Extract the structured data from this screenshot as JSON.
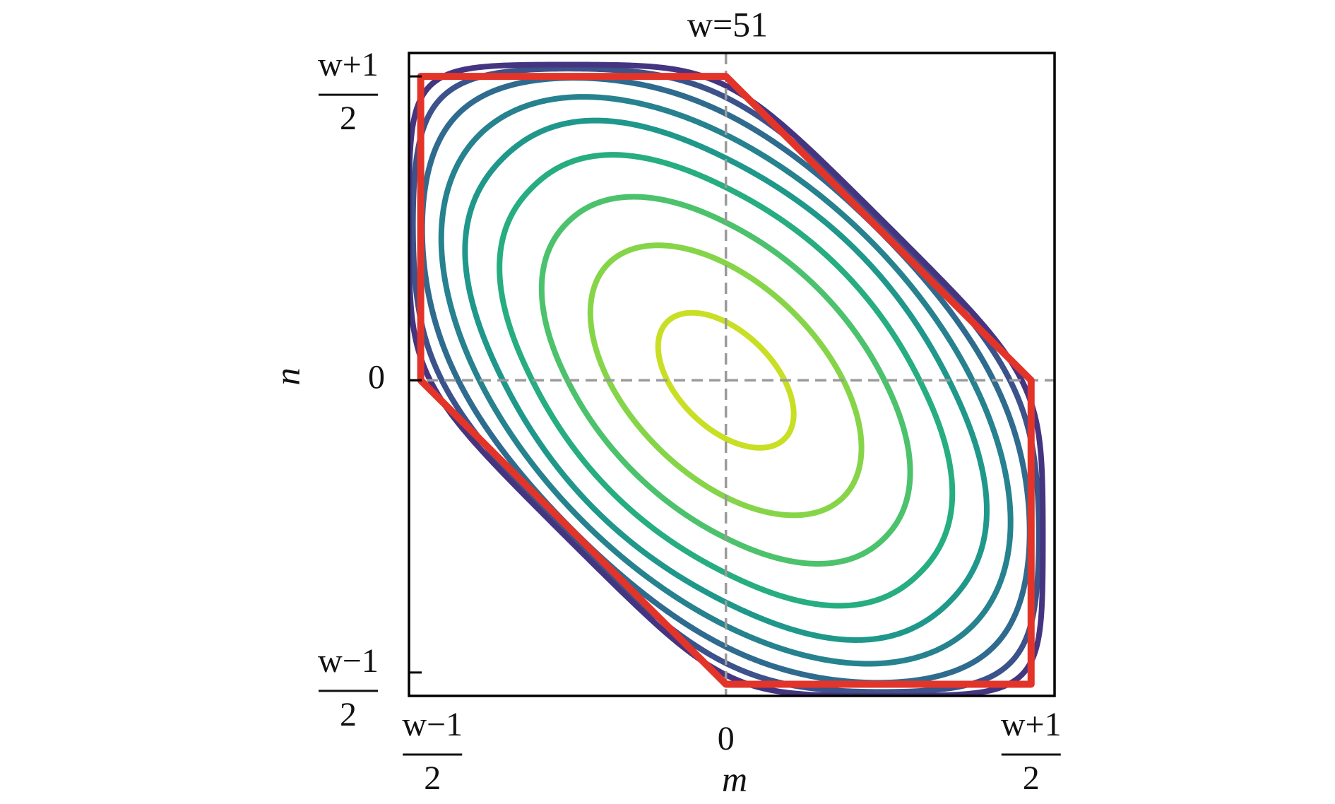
{
  "chart_data": {
    "type": "contour",
    "title": "w=51",
    "x_label": "m",
    "y_label": "n",
    "xlim": [
      -27,
      28
    ],
    "ylim": [
      -27,
      28
    ],
    "xticks": [
      {
        "value": -25,
        "label": {
          "numerator": "w−1",
          "denominator": "2"
        }
      },
      0,
      {
        "value": 26,
        "label": {
          "numerator": "w+1",
          "denominator": "2"
        }
      }
    ],
    "yticks": [
      {
        "value": -25,
        "label": {
          "numerator": "w−1",
          "denominator": "2"
        }
      },
      0,
      {
        "value": 26,
        "label": {
          "numerator": "w+1",
          "denominator": "2"
        }
      }
    ],
    "reference_lines": [
      {
        "axis": "x",
        "value": 0
      },
      {
        "axis": "y",
        "value": 0
      }
    ],
    "reference_color": "#9a9a9a",
    "boundary": {
      "color": "#e3342a",
      "x": [
        -26,
        0,
        26,
        26,
        0,
        -26
      ],
      "y": [
        26,
        26,
        0,
        -26,
        -26,
        0
      ]
    },
    "contours": [
      {
        "level": 5,
        "exponent": 2,
        "color": "#c8df24"
      },
      {
        "level": 10,
        "exponent": 2,
        "color": "#86d549"
      },
      {
        "level": 13.5,
        "exponent": 2.2,
        "color": "#4cc26c"
      },
      {
        "level": 16.5,
        "exponent": 2.5,
        "color": "#26ad81"
      },
      {
        "level": 19,
        "exponent": 3,
        "color": "#1f988b"
      },
      {
        "level": 21,
        "exponent": 4,
        "color": "#26828e"
      },
      {
        "level": 22.8,
        "exponent": 5,
        "color": "#2f6b8e"
      },
      {
        "level": 24.2,
        "exponent": 7,
        "color": "#3b528b"
      },
      {
        "level": 25.2,
        "exponent": 10,
        "color": "#453581"
      }
    ]
  }
}
